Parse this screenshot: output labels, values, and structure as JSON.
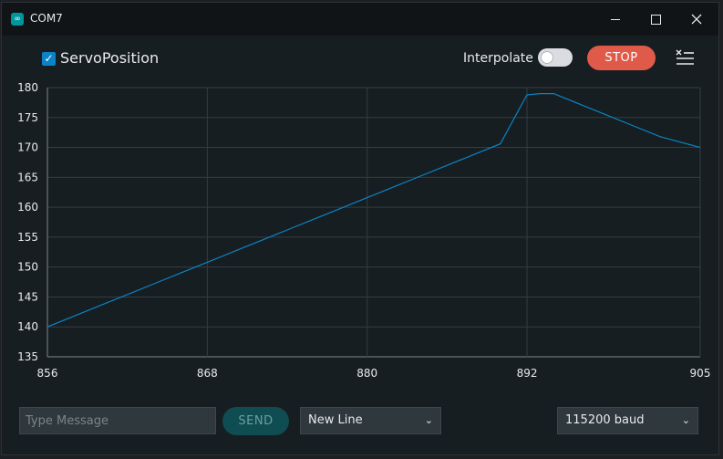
{
  "window": {
    "title": "COM7",
    "app_icon": "∞"
  },
  "toolbar": {
    "series_label": "ServoPosition",
    "series_checked": true,
    "series_color": "#0a84c6",
    "interpolate_label": "Interpolate",
    "interpolate_on": false,
    "stop_label": "STOP"
  },
  "chart_data": {
    "type": "line",
    "title": "",
    "xlabel": "",
    "ylabel": "",
    "x_ticks": [
      "856",
      "868",
      "880",
      "892",
      "905"
    ],
    "y_ticks": [
      "180",
      "175",
      "170",
      "165",
      "160",
      "155",
      "150",
      "145",
      "140",
      "135"
    ],
    "xlim": [
      856,
      905
    ],
    "ylim": [
      135,
      180
    ],
    "grid": true,
    "series": [
      {
        "x": [
          856,
          858,
          860,
          862,
          864,
          866,
          868,
          870,
          872,
          874,
          876,
          878,
          880,
          882,
          884,
          886,
          888,
          890,
          892,
          893,
          894,
          896,
          898,
          900,
          902,
          905
        ],
        "y": [
          140,
          141.8,
          143.6,
          145.4,
          147.2,
          149,
          150.8,
          152.6,
          154.4,
          156.2,
          158,
          159.8,
          161.6,
          163.4,
          165.2,
          167,
          168.8,
          170.6,
          178.8,
          179,
          179,
          177.2,
          175.4,
          173.6,
          171.8,
          170
        ],
        "color": "#0a84c6"
      }
    ]
  },
  "footer": {
    "message_placeholder": "Type Message",
    "send_label": "SEND",
    "line_ending": "New Line",
    "baud_rate": "115200 baud"
  }
}
